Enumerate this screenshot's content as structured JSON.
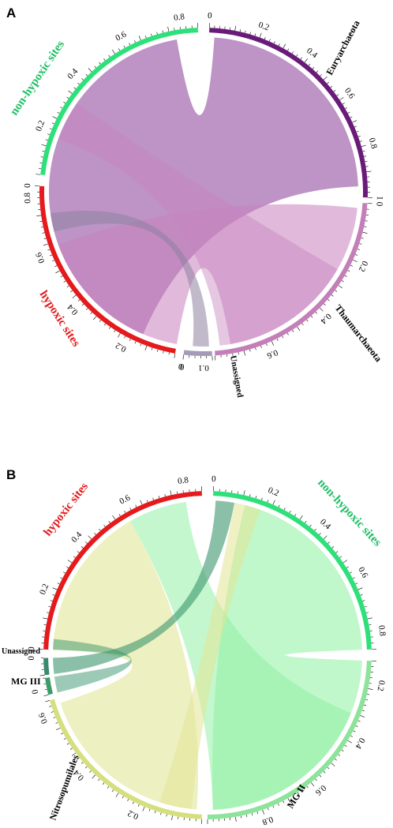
{
  "panels": [
    {
      "letter": "A",
      "groups": [
        {
          "name": "Euryarchaeota",
          "color": "#6a1b7a",
          "label_color": "#000000",
          "ticks": [
            "0",
            "0.2",
            "0.4",
            "0.6",
            "0.8",
            "1"
          ]
        },
        {
          "name": "Thaumarchaeota",
          "color": "#c47fb8",
          "label_color": "#000000",
          "ticks": [
            "0",
            "0.2",
            "0.4",
            "0.6"
          ]
        },
        {
          "name": "Unassigned",
          "color": "#a59bb8",
          "label_color": "#000000",
          "ticks": [
            "0",
            "0.1"
          ]
        },
        {
          "name": "hypoxic sites",
          "color": "#e41a1c",
          "label_color": "#e41a1c",
          "ticks": [
            "0",
            "0.2",
            "0.4",
            "0.6",
            "0.8"
          ]
        },
        {
          "name": "non-hypoxic sites",
          "color": "#2ee07a",
          "label_color": "#1fbf65",
          "ticks": [
            "0",
            "0.2",
            "0.4",
            "0.6",
            "0.8"
          ]
        }
      ]
    },
    {
      "letter": "B",
      "groups": [
        {
          "name": "non-hypoxic sites",
          "color": "#2ee07a",
          "label_color": "#1fbf65",
          "ticks": [
            "0",
            "0.2",
            "0.4",
            "0.6",
            "0.8"
          ]
        },
        {
          "name": "MG II",
          "color": "#8de39a",
          "label_color": "#000000",
          "ticks": [
            "1",
            "0.8",
            "0.6",
            "0.4",
            "0.2"
          ]
        },
        {
          "name": "Nitrosopumilales",
          "color": "#d6df7e",
          "label_color": "#000000",
          "ticks": [
            "0",
            "0.2",
            "0.4",
            "0.6"
          ]
        },
        {
          "name": "MG III",
          "color": "#3b9c6a",
          "label_color": "#000000",
          "ticks": [
            "0"
          ]
        },
        {
          "name": "Unassigned",
          "color": "#3a8a70",
          "label_color": "#000000",
          "ticks": [
            "0"
          ]
        },
        {
          "name": "hypoxic sites",
          "color": "#e41a1c",
          "label_color": "#e41a1c",
          "ticks": [
            "0",
            "0.2",
            "0.4",
            "0.6",
            "0.8"
          ]
        }
      ]
    }
  ]
}
